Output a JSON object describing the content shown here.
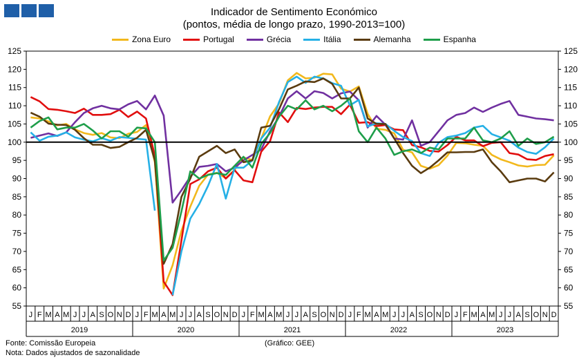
{
  "header": {
    "title": "Indicador de Sentimento Económico",
    "subtitle": "(pontos, média de longo prazo, 1990-2013=100)"
  },
  "footer": {
    "source": "Fonte: Comissão Europeia",
    "note": "Nota: Dados ajustados de sazonalidade",
    "credit": "(Gráfico: GEE)"
  },
  "colors": {
    "logo": "#1f5fa8"
  },
  "chart_data": {
    "type": "line",
    "ylim": [
      55,
      125
    ],
    "yticks": [
      55,
      60,
      65,
      70,
      75,
      80,
      85,
      90,
      95,
      100,
      105,
      110,
      115,
      120,
      125
    ],
    "reference_line": 100,
    "month_labels": [
      "J",
      "F",
      "M",
      "A",
      "M",
      "J",
      "J",
      "A",
      "S",
      "O",
      "N",
      "D"
    ],
    "years": [
      "2019",
      "2020",
      "2021",
      "2022",
      "2023"
    ],
    "grid": false,
    "legend_position": "top",
    "series": [
      {
        "name": "Zona Euro",
        "color": "#f2b81c",
        "values": [
          106.8,
          106.5,
          105.7,
          104.6,
          105.0,
          103.5,
          102.5,
          102.0,
          102.5,
          101.3,
          101.1,
          102.3,
          102.8,
          104.7,
          94.5,
          59.8,
          66.2,
          75.7,
          82.3,
          88.0,
          91.1,
          91.6,
          90.1,
          92.4,
          95.8,
          95.1,
          101.0,
          107.1,
          110.6,
          117.0,
          119.0,
          117.5,
          117.7,
          118.8,
          118.6,
          114.7,
          113.9,
          115.3,
          107.8,
          103.7,
          103.4,
          102.4,
          97.9,
          97.2,
          93.5,
          92.7,
          93.7,
          96.3,
          99.8,
          99.7,
          99.3,
          99.0,
          96.5,
          95.3,
          94.5,
          93.6,
          93.3,
          93.7,
          93.8,
          96.4
        ]
      },
      {
        "name": "Portugal",
        "color": "#e10e0e",
        "values": [
          112.4,
          111.2,
          109.1,
          108.9,
          108.5,
          108.0,
          109.2,
          107.5,
          107.5,
          107.7,
          108.9,
          106.9,
          108.4,
          106.5,
          96.2,
          61.7,
          58.0,
          73.0,
          88.5,
          89.8,
          92.0,
          93.0,
          90.0,
          92.3,
          89.5,
          89.0,
          97.4,
          100.3,
          108.2,
          105.5,
          109.4,
          109.1,
          109.5,
          109.7,
          109.7,
          107.7,
          110.3,
          105.3,
          105.5,
          104.4,
          104.7,
          103.5,
          103.3,
          99.2,
          98.6,
          97.6,
          97.4,
          99.2,
          101.5,
          100.5,
          100.5,
          98.9,
          99.8,
          100.0,
          97.0,
          96.6,
          95.3,
          95.1,
          96.2,
          96.7
        ]
      },
      {
        "name": "Grécia",
        "color": "#7030a0",
        "values": [
          101.2,
          101.8,
          102.4,
          101.7,
          102.7,
          105.5,
          108.0,
          109.3,
          110.0,
          109.3,
          109.0,
          110.4,
          111.3,
          109.0,
          112.8,
          107.3,
          83.4,
          86.8,
          90.5,
          93.2,
          93.5,
          94.0,
          92.0,
          93.0,
          95.0,
          96.5,
          98.0,
          103.0,
          107.0,
          112.0,
          114.0,
          112.0,
          114.0,
          113.5,
          112.0,
          113.4,
          113.9,
          111.5,
          104.0,
          107.2,
          104.8,
          101.0,
          100.7,
          106.0,
          99.0,
          100.0,
          103.0,
          106.0,
          107.5,
          108.0,
          109.5,
          108.3,
          109.5,
          110.5,
          111.3,
          107.5,
          107.0,
          106.5,
          106.3,
          106.0
        ]
      },
      {
        "name": "Itália",
        "color": "#25b0e6",
        "values": [
          102.7,
          100.4,
          101.5,
          101.8,
          102.7,
          101.3,
          100.7,
          100.2,
          101.1,
          100.4,
          101.4,
          101.2,
          100.9,
          100.7,
          81.2,
          null,
          58.0,
          70.0,
          79.0,
          83.0,
          88.0,
          94.0,
          84.5,
          93.0,
          93.0,
          95.0,
          101.0,
          104.0,
          111.0,
          116.5,
          118.0,
          116.3,
          118.0,
          117.5,
          116.2,
          115.5,
          110.1,
          111.6,
          104.3,
          105.2,
          105.0,
          103.1,
          101.4,
          100.3,
          97.0,
          96.2,
          99.8,
          101.4,
          101.8,
          102.5,
          104.0,
          104.5,
          102.2,
          101.3,
          100.4,
          98.5,
          97.3,
          96.8,
          98.6,
          101.0
        ]
      },
      {
        "name": "Alemanha",
        "color": "#5a3b0f",
        "values": [
          108.1,
          107.0,
          105.1,
          104.8,
          104.7,
          103.4,
          101.1,
          99.3,
          99.3,
          98.4,
          98.7,
          100.0,
          101.2,
          103.4,
          95.0,
          66.6,
          72.0,
          85.0,
          90.0,
          96.0,
          97.5,
          99.0,
          97.0,
          98.0,
          94.5,
          95.0,
          104.0,
          104.5,
          109.0,
          114.5,
          115.5,
          116.7,
          116.5,
          117.5,
          116.0,
          112.0,
          112.0,
          115.0,
          106.5,
          105.0,
          105.0,
          101.0,
          97.0,
          93.5,
          91.5,
          93.0,
          95.0,
          97.2,
          97.2,
          97.3,
          97.3,
          98.0,
          94.5,
          92.0,
          89.0,
          89.5,
          90.0,
          90.0,
          89.2,
          91.7
        ]
      },
      {
        "name": "Espanha",
        "color": "#1e9e4a",
        "values": [
          104.0,
          105.8,
          106.8,
          103.5,
          104.0,
          104.0,
          105.0,
          103.2,
          101.0,
          103.0,
          103.0,
          101.5,
          104.0,
          103.8,
          100.0,
          67.5,
          71.0,
          81.0,
          92.0,
          90.0,
          91.0,
          91.5,
          91.0,
          93.5,
          96.0,
          93.0,
          99.5,
          102.5,
          107.0,
          110.0,
          109.0,
          111.5,
          109.0,
          110.0,
          108.5,
          110.0,
          112.0,
          103.0,
          100.0,
          104.0,
          101.0,
          96.5,
          97.5,
          98.0,
          97.0,
          98.5,
          98.0,
          101.0,
          101.0,
          101.0,
          104.0,
          100.5,
          100.0,
          101.0,
          103.0,
          99.0,
          101.0,
          99.5,
          100.0,
          101.5
        ]
      }
    ]
  }
}
